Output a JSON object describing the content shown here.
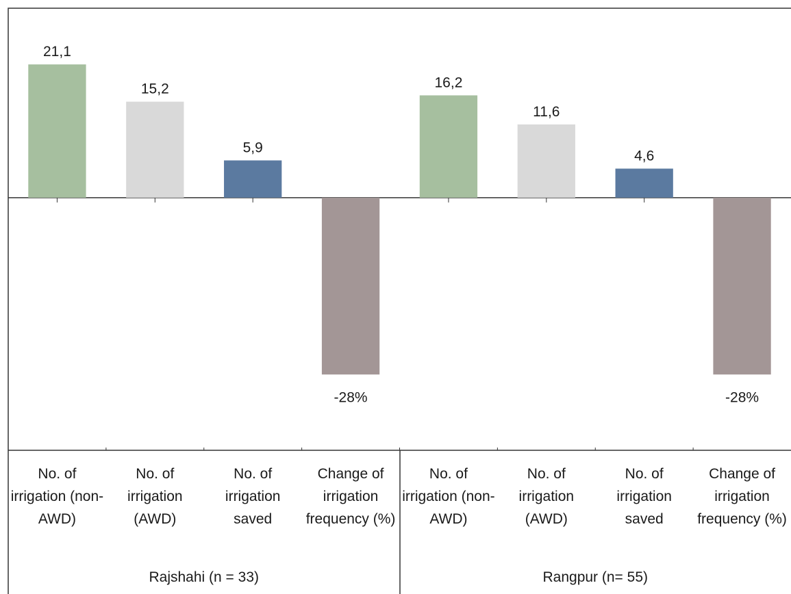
{
  "chart_data": {
    "type": "bar",
    "categories": [
      "No. of irrigation (non-AWD)",
      "No. of irrigation (AWD)",
      "No. of irrigation saved",
      "Change of irrigation frequency (%)",
      "No. of irrigation (non-AWD)",
      "No. of irrigation (AWD)",
      "No. of irrigation saved",
      "Change of irrigation frequency (%)"
    ],
    "groups": [
      "Rajshahi (n = 33)",
      "Rangpur (n= 55)"
    ],
    "values": [
      21.1,
      15.2,
      5.9,
      -28,
      16.2,
      11.6,
      4.6,
      -28
    ],
    "value_labels": [
      "21,1",
      "15,2",
      "5,9",
      "-28%",
      "16,2",
      "11,6",
      "4,6",
      "-28%"
    ],
    "colors": [
      "#a6bf9f",
      "#d9d9d9",
      "#5b7aa0",
      "#a39696",
      "#a6bf9f",
      "#d9d9d9",
      "#5b7aa0",
      "#a39696"
    ],
    "ylim": [
      -40,
      30
    ]
  }
}
